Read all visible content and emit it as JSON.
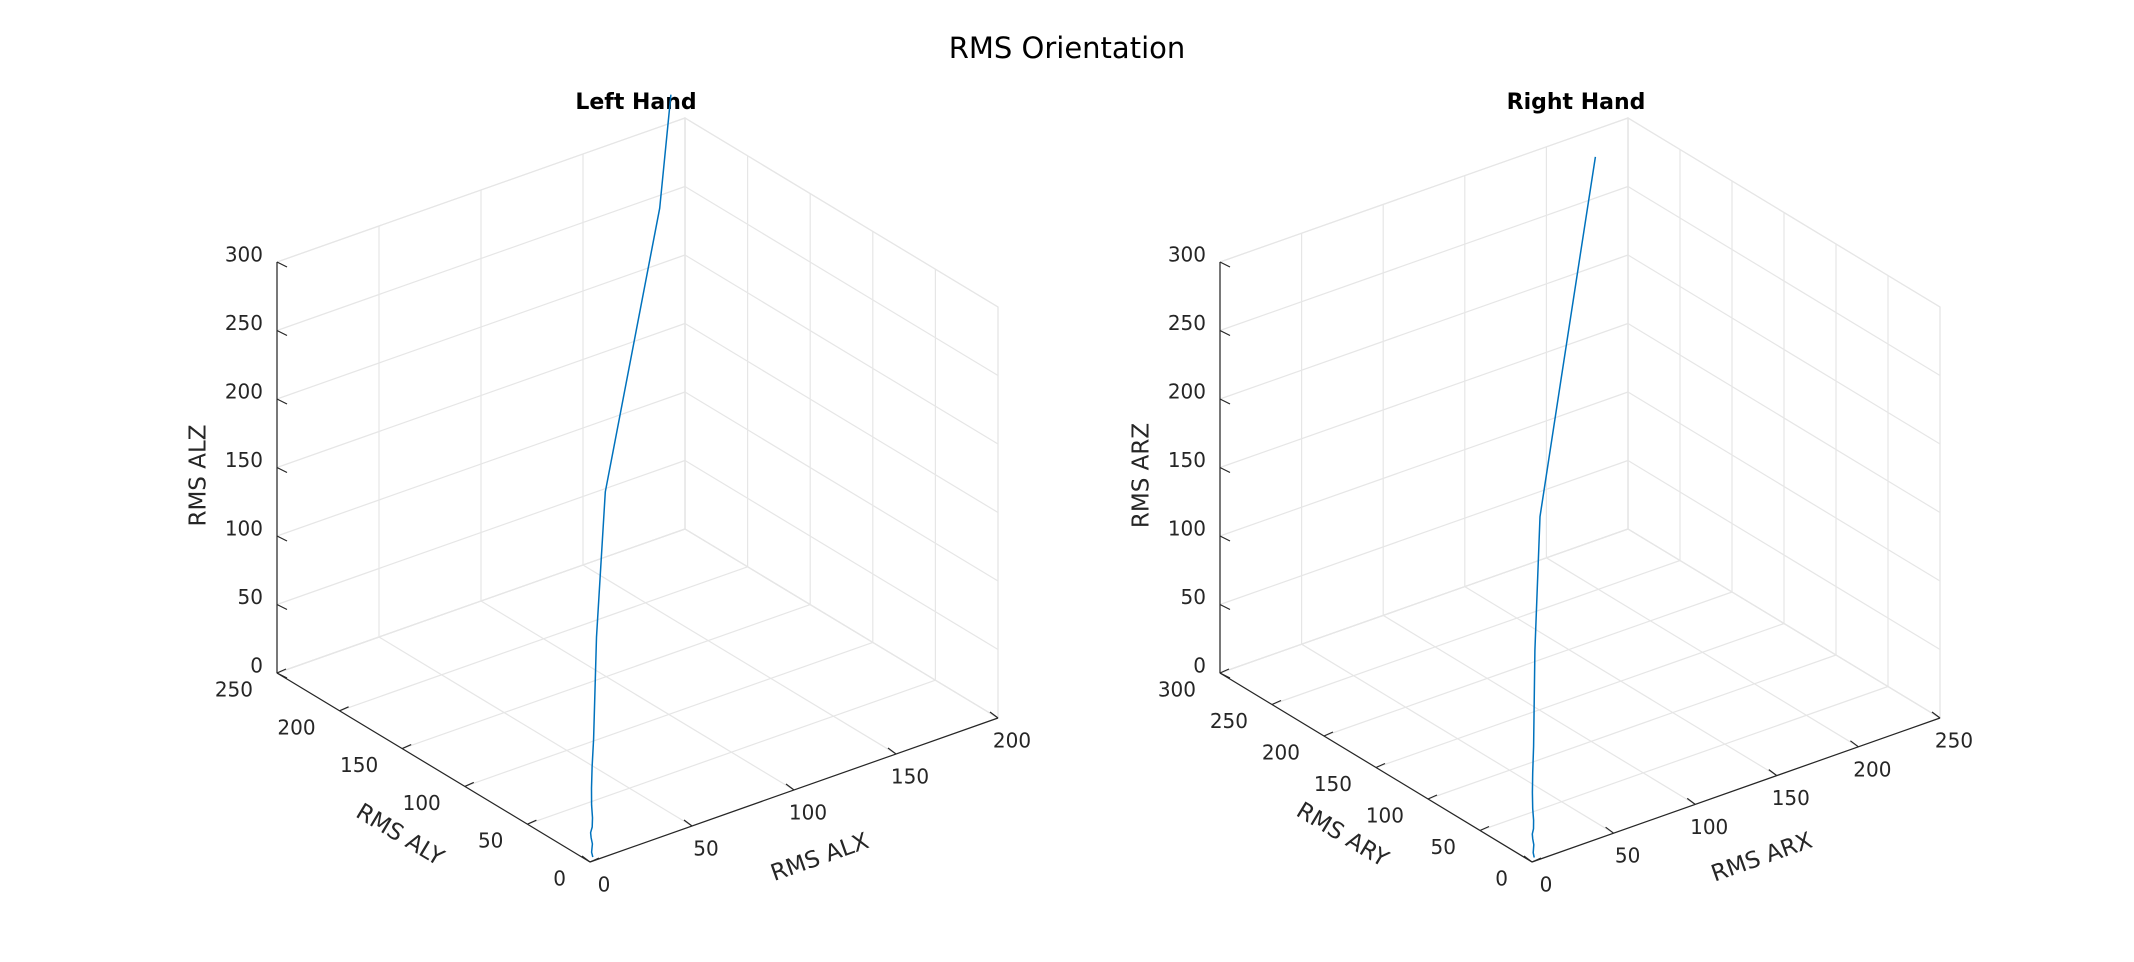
{
  "figure": {
    "title": "RMS Orientation"
  },
  "colors": {
    "line": "#0072BD",
    "grid": "#e6e6e6",
    "axis": "#262626",
    "text": "#262626"
  },
  "chart_data": [
    {
      "type": "line3d",
      "title": "Left Hand",
      "xlabel": "RMS ALX",
      "ylabel": "RMS ALY",
      "zlabel": "RMS ALZ",
      "xlim": [
        0,
        200
      ],
      "ylim": [
        0,
        250
      ],
      "zlim": [
        0,
        300
      ],
      "xticks": [
        0,
        50,
        100,
        150,
        200
      ],
      "yticks": [
        0,
        50,
        100,
        150,
        200,
        250
      ],
      "zticks": [
        0,
        50,
        100,
        150,
        200,
        250,
        300
      ],
      "grid": true,
      "series": [
        {
          "x": [
            2,
            2,
            3,
            3,
            4,
            6,
            8,
            10,
            13,
            17,
            22,
            40,
            75,
            120,
            160,
            190
          ],
          "y": [
            1,
            2,
            3,
            4,
            6,
            8,
            11,
            15,
            20,
            26,
            33,
            60,
            110,
            160,
            205,
            245
          ],
          "z": [
            2,
            5,
            10,
            14,
            16,
            18,
            22,
            28,
            36,
            46,
            60,
            110,
            170,
            230,
            280,
            325
          ]
        }
      ]
    },
    {
      "type": "line3d",
      "title": "Right Hand",
      "xlabel": "RMS ARX",
      "ylabel": "RMS ARY",
      "zlabel": "RMS ARZ",
      "xlim": [
        0,
        250
      ],
      "ylim": [
        0,
        300
      ],
      "zlim": [
        0,
        300
      ],
      "xticks": [
        0,
        50,
        100,
        150,
        200,
        250
      ],
      "yticks": [
        0,
        50,
        100,
        150,
        200,
        250,
        300
      ],
      "zticks": [
        0,
        50,
        100,
        150,
        200,
        250,
        300
      ],
      "grid": true,
      "series": [
        {
          "x": [
            2,
            2,
            3,
            3,
            4,
            6,
            8,
            10,
            13,
            17,
            22,
            40,
            75,
            120,
            160,
            195
          ],
          "y": [
            1,
            2,
            3,
            4,
            6,
            8,
            11,
            15,
            20,
            26,
            33,
            60,
            110,
            160,
            205,
            245
          ],
          "z": [
            2,
            5,
            10,
            14,
            16,
            18,
            22,
            28,
            36,
            46,
            60,
            110,
            170,
            230,
            280,
            320
          ]
        }
      ]
    }
  ]
}
